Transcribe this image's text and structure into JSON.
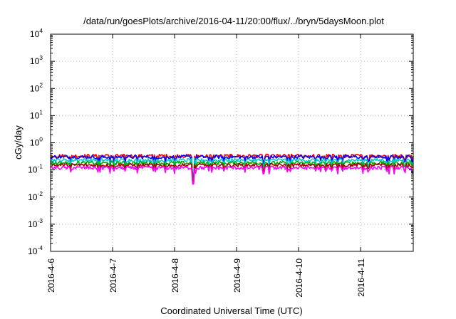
{
  "chart_data": {
    "type": "line",
    "title": "/data/run/goesPlots/archive/2016-04-11/20:00/flux/../bryn/5daysMoon.plot",
    "xlabel": "Coordinated Universal Time (UTC)",
    "ylabel": "cGy/day",
    "yscale": "log",
    "ylim_exp": [
      -4,
      4
    ],
    "y_ticks": [
      {
        "base": "10",
        "exp": "-4"
      },
      {
        "base": "10",
        "exp": "-3"
      },
      {
        "base": "10",
        "exp": "-2"
      },
      {
        "base": "10",
        "exp": "-1"
      },
      {
        "base": "10",
        "exp": "0"
      },
      {
        "base": "10",
        "exp": "1"
      },
      {
        "base": "10",
        "exp": "2"
      },
      {
        "base": "10",
        "exp": "3"
      },
      {
        "base": "10",
        "exp": "4"
      }
    ],
    "x_ticks": [
      "2016-4-6",
      "2016-4-7",
      "2016-4-8",
      "2016-4-9",
      "2016-4-10",
      "2016-4-11"
    ],
    "xlim_days": [
      0,
      5.85
    ],
    "grid": true,
    "series": [
      {
        "color": "#ff0000",
        "base": 0.33,
        "floor": 0.2,
        "dips": [
          [
            2.3,
            0.05
          ],
          [
            3.43,
            0.17
          ]
        ]
      },
      {
        "color": "#0000ff",
        "base": 0.3,
        "floor": 0.17,
        "dips": [
          [
            2.3,
            0.05
          ],
          [
            3.43,
            0.15
          ]
        ]
      },
      {
        "color": "#00cccc",
        "base": 0.23,
        "floor": 0.13,
        "dips": [
          [
            2.3,
            0.04
          ],
          [
            3.43,
            0.12
          ]
        ]
      },
      {
        "color": "#00aa00",
        "base": 0.18,
        "floor": 0.11,
        "dips": [
          [
            2.3,
            0.04
          ],
          [
            3.43,
            0.1
          ]
        ]
      },
      {
        "color": "#aa0000",
        "base": 0.15,
        "floor": 0.09,
        "dips": [
          [
            2.3,
            0.035
          ],
          [
            3.43,
            0.08
          ]
        ]
      },
      {
        "color": "#ff00ff",
        "base": 0.12,
        "floor": 0.07,
        "dips": [
          [
            2.3,
            0.03
          ],
          [
            3.43,
            0.07
          ]
        ]
      }
    ]
  }
}
